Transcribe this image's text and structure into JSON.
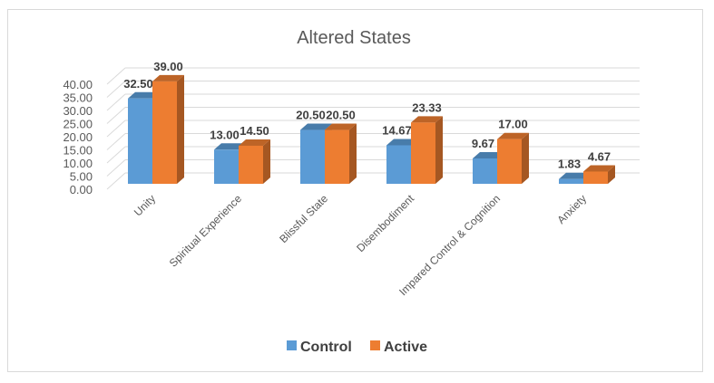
{
  "chart_data": {
    "type": "bar",
    "title": "Altered States",
    "categories": [
      "Unity",
      "Spiritual Experience",
      "Blissful State",
      "Disembodiment",
      "Impared Control & Cognition",
      "Anxiety"
    ],
    "series": [
      {
        "name": "Control",
        "color": "#5B9BD5",
        "values": [
          32.5,
          13.0,
          20.5,
          14.67,
          9.67,
          1.83
        ],
        "labels": [
          "32.50",
          "13.00",
          "20.50",
          "14.67",
          "9.67",
          "1.83"
        ]
      },
      {
        "name": "Active",
        "color": "#ED7D31",
        "values": [
          39.0,
          14.5,
          20.5,
          23.33,
          17.0,
          4.67
        ],
        "labels": [
          "39.00",
          "14.50",
          "20.50",
          "23.33",
          "17.00",
          "4.67"
        ]
      }
    ],
    "ylim": [
      0,
      40
    ],
    "yticks": [
      "0.00",
      "5.00",
      "10.00",
      "15.00",
      "20.00",
      "25.00",
      "30.00",
      "35.00",
      "40.00"
    ],
    "xlabel": "",
    "ylabel": "",
    "grid": true,
    "legend": "bottom"
  }
}
